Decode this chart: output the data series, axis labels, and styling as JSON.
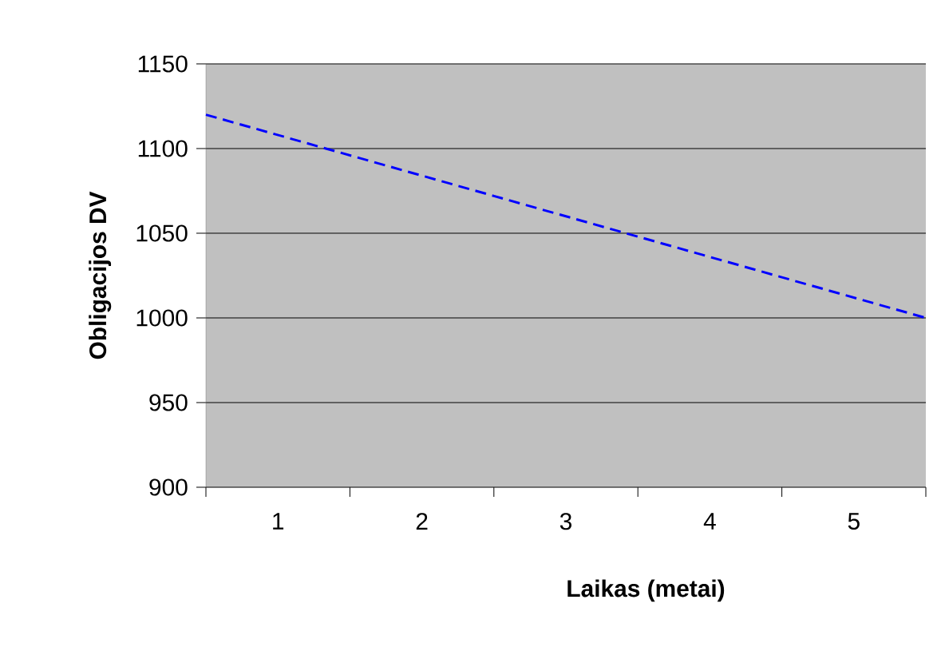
{
  "chart_data": {
    "type": "line",
    "xlabel": "Laikas (metai)",
    "ylabel": "Obligacijos DV",
    "x": [
      0,
      1,
      2,
      3,
      4,
      5
    ],
    "values": [
      1120,
      1096,
      1072,
      1048,
      1024,
      1000
    ],
    "color": "#0000ff",
    "line_style": "dashed",
    "xlim": [
      0,
      5
    ],
    "ylim": [
      900,
      1150
    ],
    "xticks": [
      {
        "value": 0,
        "label": null
      },
      {
        "value": 0.5,
        "label": "1"
      },
      {
        "value": 1,
        "label": null
      },
      {
        "value": 1.5,
        "label": "2"
      },
      {
        "value": 2,
        "label": null
      },
      {
        "value": 2.5,
        "label": "3"
      },
      {
        "value": 3,
        "label": null
      },
      {
        "value": 3.5,
        "label": "4"
      },
      {
        "value": 4,
        "label": null
      },
      {
        "value": 4.5,
        "label": "5"
      },
      {
        "value": 5,
        "label": null
      }
    ],
    "yticks": [
      900,
      950,
      1000,
      1050,
      1100,
      1150
    ],
    "grid": "y"
  }
}
